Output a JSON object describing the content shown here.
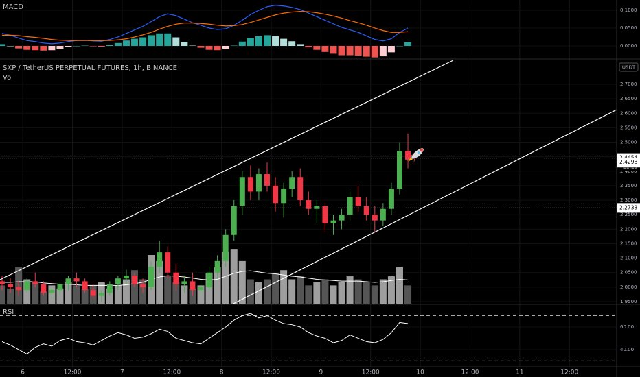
{
  "chart_data": [
    {
      "type": "macd",
      "title": "MACD",
      "ylim": [
        -0.0346,
        0.1288
      ],
      "yticks": [
        {
          "value": 0.1,
          "label": "0.1000"
        },
        {
          "value": 0.05,
          "label": "0.0500"
        },
        {
          "value": 0,
          "label": "0.0000"
        }
      ],
      "series": [
        {
          "color": "#2962ff",
          "values": [
            0.035,
            0.03,
            0.022,
            0.015,
            0.012,
            0.008,
            0.006,
            0.008,
            0.012,
            0.015,
            0.016,
            0.014,
            0.013,
            0.018,
            0.025,
            0.035,
            0.045,
            0.055,
            0.068,
            0.082,
            0.09,
            0.085,
            0.075,
            0.065,
            0.058,
            0.05,
            0.046,
            0.048,
            0.058,
            0.072,
            0.088,
            0.1,
            0.11,
            0.114,
            0.112,
            0.108,
            0.102,
            0.092,
            0.082,
            0.072,
            0.062,
            0.052,
            0.045,
            0.038,
            0.028,
            0.018,
            0.014,
            0.02,
            0.038,
            0.05
          ]
        },
        {
          "color": "#ff6d00",
          "values": [
            0.03,
            0.03,
            0.029,
            0.026,
            0.024,
            0.021,
            0.018,
            0.016,
            0.015,
            0.015,
            0.015,
            0.015,
            0.015,
            0.015,
            0.017,
            0.02,
            0.025,
            0.031,
            0.038,
            0.047,
            0.055,
            0.061,
            0.064,
            0.064,
            0.063,
            0.061,
            0.058,
            0.056,
            0.057,
            0.06,
            0.066,
            0.073,
            0.08,
            0.087,
            0.092,
            0.095,
            0.097,
            0.096,
            0.093,
            0.089,
            0.084,
            0.078,
            0.071,
            0.065,
            0.058,
            0.05,
            0.043,
            0.038,
            0.038,
            0.04
          ]
        }
      ],
      "histogram": {
        "colors": [
          "#26a69a",
          "#b2dfdb",
          "#ffcdd2",
          "#ef5350"
        ],
        "values": [
          0.005,
          0.0,
          -0.007,
          -0.011,
          -0.012,
          -0.013,
          -0.012,
          -0.008,
          -0.003,
          0.0,
          0.001,
          -0.001,
          -0.002,
          0.003,
          0.008,
          0.015,
          0.02,
          0.024,
          0.03,
          0.035,
          0.035,
          0.024,
          0.011,
          0.001,
          -0.005,
          -0.011,
          -0.012,
          -0.008,
          0.001,
          0.012,
          0.022,
          0.027,
          0.03,
          0.027,
          0.02,
          0.013,
          0.005,
          -0.004,
          -0.011,
          -0.017,
          -0.022,
          -0.026,
          -0.026,
          -0.027,
          -0.03,
          -0.032,
          -0.029,
          -0.018,
          0.0,
          0.01
        ]
      }
    },
    {
      "type": "candlestick",
      "title": "SXP / TetherUS PERPETUAL FUTURES, 1h, BINANCE",
      "currency": "USDT",
      "up_color": "#4caf50",
      "down_color": "#f23645",
      "xlim": [
        -5.5,
        143.4
      ],
      "xticks": [
        {
          "value": 0,
          "label": "6"
        },
        {
          "value": 12,
          "label": "12:00"
        },
        {
          "value": 24,
          "label": "7"
        },
        {
          "value": 36,
          "label": "12:00"
        },
        {
          "value": 48,
          "label": "8"
        },
        {
          "value": 60,
          "label": "12:00"
        },
        {
          "value": 72,
          "label": "9"
        },
        {
          "value": 84,
          "label": "12:00"
        },
        {
          "value": 96,
          "label": "10"
        },
        {
          "value": 108,
          "label": "12:00"
        },
        {
          "value": 120,
          "label": "11"
        },
        {
          "value": 132,
          "label": "12:00"
        }
      ],
      "ylim": [
        1.9429,
        2.7828
      ],
      "yticks": [
        {
          "value": 1.95,
          "label": "1.9500"
        },
        {
          "value": 2.0,
          "label": "2.0000"
        },
        {
          "value": 2.05,
          "label": "2.0500"
        },
        {
          "value": 2.1,
          "label": "2.1000"
        },
        {
          "value": 2.15,
          "label": "2.1500"
        },
        {
          "value": 2.2,
          "label": "2.2000"
        },
        {
          "value": 2.25,
          "label": "2.2500"
        },
        {
          "value": 2.3,
          "label": "2.3000"
        },
        {
          "value": 2.35,
          "label": "2.3500"
        },
        {
          "value": 2.4,
          "label": "2.4000"
        },
        {
          "value": 2.45,
          "label": "2.4500"
        },
        {
          "value": 2.5,
          "label": "2.5000"
        },
        {
          "value": 2.55,
          "label": "2.5500"
        },
        {
          "value": 2.6,
          "label": "2.6000"
        },
        {
          "value": 2.65,
          "label": "2.6500"
        },
        {
          "value": 2.7,
          "label": "2.7000"
        }
      ],
      "x": [
        -5,
        -3,
        -1,
        1,
        3,
        5,
        7,
        9,
        11,
        13,
        15,
        17,
        19,
        21,
        23,
        25,
        27,
        29,
        31,
        33,
        35,
        37,
        39,
        41,
        43,
        45,
        47,
        49,
        51,
        53,
        55,
        57,
        59,
        61,
        63,
        65,
        67,
        69,
        71,
        73,
        75,
        77,
        79,
        81,
        83,
        85,
        87,
        89,
        91,
        93
      ],
      "open": [
        2.02,
        2.01,
        2.0,
        1.99,
        2.02,
        2.01,
        1.98,
        1.99,
        2.01,
        2.03,
        2.02,
        1.99,
        1.97,
        1.98,
        2.01,
        2.03,
        2.04,
        2.01,
        2.0,
        2.07,
        2.12,
        2.05,
        2.01,
        2.02,
        1.99,
        2.0,
        2.05,
        2.09,
        2.18,
        2.28,
        2.38,
        2.33,
        2.39,
        2.35,
        2.29,
        2.34,
        2.38,
        2.3,
        2.27,
        2.28,
        2.22,
        2.23,
        2.25,
        2.31,
        2.28,
        2.25,
        2.23,
        2.27,
        2.34,
        2.47
      ],
      "high": [
        2.04,
        2.03,
        2.02,
        2.03,
        2.05,
        2.02,
        2.0,
        2.02,
        2.04,
        2.05,
        2.03,
        2.01,
        1.99,
        2.02,
        2.04,
        2.06,
        2.05,
        2.03,
        2.09,
        2.16,
        2.14,
        2.08,
        2.04,
        2.05,
        2.02,
        2.07,
        2.11,
        2.2,
        2.3,
        2.4,
        2.42,
        2.41,
        2.43,
        2.38,
        2.36,
        2.4,
        2.41,
        2.33,
        2.3,
        2.29,
        2.25,
        2.27,
        2.33,
        2.35,
        2.31,
        2.28,
        2.29,
        2.36,
        2.5,
        2.53
      ],
      "low": [
        1.99,
        1.98,
        1.97,
        1.98,
        2.0,
        1.97,
        1.96,
        1.97,
        1.99,
        2.0,
        1.98,
        1.96,
        1.95,
        1.97,
        1.99,
        2.01,
        2.0,
        1.98,
        1.99,
        2.05,
        2.03,
        1.99,
        1.98,
        1.97,
        1.97,
        1.99,
        2.03,
        2.07,
        2.16,
        2.25,
        2.3,
        2.3,
        2.33,
        2.26,
        2.24,
        2.31,
        2.28,
        2.25,
        2.22,
        2.19,
        2.18,
        2.2,
        2.23,
        2.26,
        2.23,
        2.19,
        2.21,
        2.25,
        2.32,
        2.41
      ],
      "close": [
        2.01,
        2.0,
        1.99,
        2.02,
        2.01,
        1.98,
        1.99,
        2.01,
        2.03,
        2.02,
        1.99,
        1.97,
        1.98,
        2.01,
        2.03,
        2.04,
        2.01,
        2.0,
        2.07,
        2.12,
        2.05,
        2.01,
        2.02,
        1.99,
        2.0,
        2.05,
        2.09,
        2.18,
        2.28,
        2.38,
        2.33,
        2.39,
        2.35,
        2.29,
        2.34,
        2.38,
        2.3,
        2.27,
        2.28,
        2.22,
        2.23,
        2.25,
        2.31,
        2.28,
        2.25,
        2.23,
        2.27,
        2.34,
        2.47,
        2.44
      ],
      "volume": {
        "title": "Vol",
        "ylim": [
          0,
          400
        ],
        "up_color": "#9e9e9e",
        "down_color": "#555555",
        "ma_color": "#ffffff",
        "values": [
          30,
          25,
          60,
          40,
          35,
          20,
          30,
          25,
          35,
          30,
          25,
          30,
          35,
          25,
          30,
          40,
          55,
          40,
          80,
          70,
          45,
          35,
          30,
          25,
          30,
          50,
          60,
          85,
          90,
          70,
          40,
          35,
          40,
          50,
          55,
          40,
          45,
          30,
          35,
          40,
          30,
          35,
          45,
          40,
          35,
          30,
          40,
          45,
          60,
          30
        ],
        "ma": [
          35,
          35,
          36,
          36,
          36,
          34,
          33,
          32,
          32,
          31,
          30,
          30,
          30,
          30,
          30,
          31,
          33,
          35,
          40,
          44,
          46,
          45,
          44,
          42,
          40,
          39,
          40,
          45,
          50,
          53,
          54,
          52,
          50,
          49,
          47,
          45,
          44,
          42,
          40,
          39,
          38,
          37,
          37,
          37,
          36,
          35,
          36,
          38,
          40,
          39
        ]
      },
      "price_labels": [
        {
          "value": 2.4454,
          "label": "2.4454",
          "background": "#ffffff",
          "text_color": "#000000",
          "dotted": true
        },
        {
          "value": 2.4298,
          "label": "2.4298",
          "background": "#ffffff",
          "text_color": "#000000",
          "dotted": false
        },
        {
          "value": 2.2733,
          "label": "2.2733",
          "background": "#ffffff",
          "text_color": "#000000",
          "dotted": true
        }
      ],
      "countdown": "21:23"
    },
    {
      "type": "line",
      "title": "RSI",
      "color": "#ffffff",
      "ylim": [
        24.8,
        79.4
      ],
      "yticks": [
        {
          "value": 60,
          "label": "60.00"
        },
        {
          "value": 40,
          "label": "40.00"
        }
      ],
      "bands": [
        70,
        30
      ],
      "values": [
        47,
        44,
        40,
        36,
        42,
        45,
        43,
        48,
        50,
        47,
        46,
        44,
        48,
        52,
        55,
        53,
        50,
        51,
        54,
        58,
        56,
        50,
        48,
        46,
        45,
        50,
        55,
        60,
        66,
        70,
        72,
        68,
        70,
        66,
        63,
        62,
        60,
        55,
        52,
        50,
        46,
        48,
        53,
        50,
        47,
        46,
        49,
        55,
        64,
        63
      ]
    }
  ]
}
